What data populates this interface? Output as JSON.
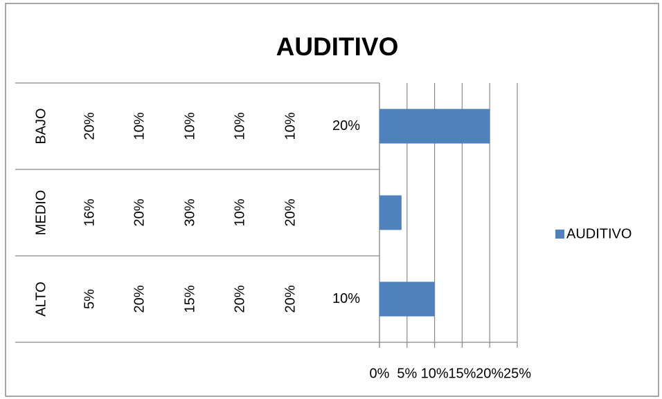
{
  "chart_data": {
    "type": "bar",
    "orientation": "horizontal",
    "title": "AUDITIVO",
    "categories": [
      [
        "BAJO",
        "20%",
        "10%",
        "10%",
        "10%",
        "10%",
        "20%"
      ],
      [
        "MEDIO",
        "16%",
        "20%",
        "30%",
        "10%",
        "20%",
        null
      ],
      [
        "ALTO",
        "5%",
        "20%",
        "15%",
        "20%",
        "20%",
        "10%"
      ]
    ],
    "series": [
      {
        "name": "AUDITIVO",
        "color": "#4f81bd",
        "values": [
          20,
          4,
          10
        ]
      }
    ],
    "xlim": [
      0,
      25
    ],
    "xticks": [
      {
        "value": 0,
        "label": "0%"
      },
      {
        "value": 5,
        "label": "5%"
      },
      {
        "value": 10,
        "label": "10%"
      },
      {
        "value": 15,
        "label": "15%"
      },
      {
        "value": 20,
        "label": "20%"
      },
      {
        "value": 25,
        "label": "25%"
      }
    ],
    "grid": true,
    "legend": "right"
  }
}
